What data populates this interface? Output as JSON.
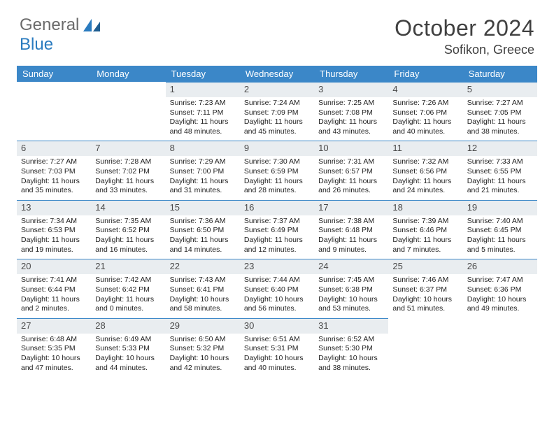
{
  "brand": {
    "word1": "General",
    "word2": "Blue"
  },
  "title": "October 2024",
  "location": "Sofikon, Greece",
  "colors": {
    "header_bg": "#3b87c8",
    "header_text": "#ffffff",
    "daynum_bg": "#e9edf0",
    "daynum_border": "#3b87c8",
    "body_text": "#222222",
    "brand_gray": "#6b6b6b",
    "brand_blue": "#2a7bbf"
  },
  "day_names": [
    "Sunday",
    "Monday",
    "Tuesday",
    "Wednesday",
    "Thursday",
    "Friday",
    "Saturday"
  ],
  "weeks": [
    [
      null,
      null,
      {
        "n": "1",
        "sr": "7:23 AM",
        "ss": "7:11 PM",
        "dl": "11 hours and 48 minutes."
      },
      {
        "n": "2",
        "sr": "7:24 AM",
        "ss": "7:09 PM",
        "dl": "11 hours and 45 minutes."
      },
      {
        "n": "3",
        "sr": "7:25 AM",
        "ss": "7:08 PM",
        "dl": "11 hours and 43 minutes."
      },
      {
        "n": "4",
        "sr": "7:26 AM",
        "ss": "7:06 PM",
        "dl": "11 hours and 40 minutes."
      },
      {
        "n": "5",
        "sr": "7:27 AM",
        "ss": "7:05 PM",
        "dl": "11 hours and 38 minutes."
      }
    ],
    [
      {
        "n": "6",
        "sr": "7:27 AM",
        "ss": "7:03 PM",
        "dl": "11 hours and 35 minutes."
      },
      {
        "n": "7",
        "sr": "7:28 AM",
        "ss": "7:02 PM",
        "dl": "11 hours and 33 minutes."
      },
      {
        "n": "8",
        "sr": "7:29 AM",
        "ss": "7:00 PM",
        "dl": "11 hours and 31 minutes."
      },
      {
        "n": "9",
        "sr": "7:30 AM",
        "ss": "6:59 PM",
        "dl": "11 hours and 28 minutes."
      },
      {
        "n": "10",
        "sr": "7:31 AM",
        "ss": "6:57 PM",
        "dl": "11 hours and 26 minutes."
      },
      {
        "n": "11",
        "sr": "7:32 AM",
        "ss": "6:56 PM",
        "dl": "11 hours and 24 minutes."
      },
      {
        "n": "12",
        "sr": "7:33 AM",
        "ss": "6:55 PM",
        "dl": "11 hours and 21 minutes."
      }
    ],
    [
      {
        "n": "13",
        "sr": "7:34 AM",
        "ss": "6:53 PM",
        "dl": "11 hours and 19 minutes."
      },
      {
        "n": "14",
        "sr": "7:35 AM",
        "ss": "6:52 PM",
        "dl": "11 hours and 16 minutes."
      },
      {
        "n": "15",
        "sr": "7:36 AM",
        "ss": "6:50 PM",
        "dl": "11 hours and 14 minutes."
      },
      {
        "n": "16",
        "sr": "7:37 AM",
        "ss": "6:49 PM",
        "dl": "11 hours and 12 minutes."
      },
      {
        "n": "17",
        "sr": "7:38 AM",
        "ss": "6:48 PM",
        "dl": "11 hours and 9 minutes."
      },
      {
        "n": "18",
        "sr": "7:39 AM",
        "ss": "6:46 PM",
        "dl": "11 hours and 7 minutes."
      },
      {
        "n": "19",
        "sr": "7:40 AM",
        "ss": "6:45 PM",
        "dl": "11 hours and 5 minutes."
      }
    ],
    [
      {
        "n": "20",
        "sr": "7:41 AM",
        "ss": "6:44 PM",
        "dl": "11 hours and 2 minutes."
      },
      {
        "n": "21",
        "sr": "7:42 AM",
        "ss": "6:42 PM",
        "dl": "11 hours and 0 minutes."
      },
      {
        "n": "22",
        "sr": "7:43 AM",
        "ss": "6:41 PM",
        "dl": "10 hours and 58 minutes."
      },
      {
        "n": "23",
        "sr": "7:44 AM",
        "ss": "6:40 PM",
        "dl": "10 hours and 56 minutes."
      },
      {
        "n": "24",
        "sr": "7:45 AM",
        "ss": "6:38 PM",
        "dl": "10 hours and 53 minutes."
      },
      {
        "n": "25",
        "sr": "7:46 AM",
        "ss": "6:37 PM",
        "dl": "10 hours and 51 minutes."
      },
      {
        "n": "26",
        "sr": "7:47 AM",
        "ss": "6:36 PM",
        "dl": "10 hours and 49 minutes."
      }
    ],
    [
      {
        "n": "27",
        "sr": "6:48 AM",
        "ss": "5:35 PM",
        "dl": "10 hours and 47 minutes."
      },
      {
        "n": "28",
        "sr": "6:49 AM",
        "ss": "5:33 PM",
        "dl": "10 hours and 44 minutes."
      },
      {
        "n": "29",
        "sr": "6:50 AM",
        "ss": "5:32 PM",
        "dl": "10 hours and 42 minutes."
      },
      {
        "n": "30",
        "sr": "6:51 AM",
        "ss": "5:31 PM",
        "dl": "10 hours and 40 minutes."
      },
      {
        "n": "31",
        "sr": "6:52 AM",
        "ss": "5:30 PM",
        "dl": "10 hours and 38 minutes."
      },
      null,
      null
    ]
  ]
}
